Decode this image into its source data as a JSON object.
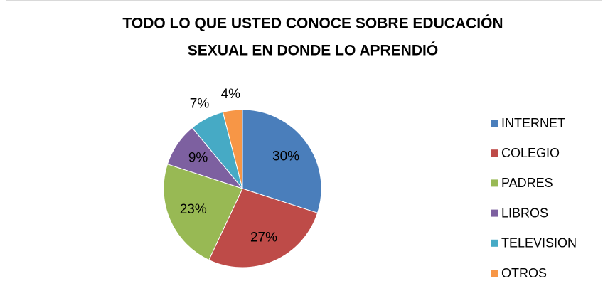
{
  "chart_data": {
    "type": "pie",
    "title": [
      "TODO LO QUE  USTED CONOCE SOBRE EDUCACIÓN",
      "SEXUAL EN DONDE LO APRENDIÓ"
    ],
    "categories": [
      "INTERNET",
      "COLEGIO",
      "PADRES",
      "LIBROS",
      "TELEVISION",
      "OTROS"
    ],
    "values": [
      30,
      27,
      23,
      9,
      7,
      4
    ],
    "value_labels": [
      "30%",
      "27%",
      "23%",
      "9%",
      "7%",
      "4%"
    ],
    "colors": [
      "#4a7ebb",
      "#be4b48",
      "#98b954",
      "#7d60a0",
      "#46aac5",
      "#f79646"
    ],
    "legend": "right"
  }
}
